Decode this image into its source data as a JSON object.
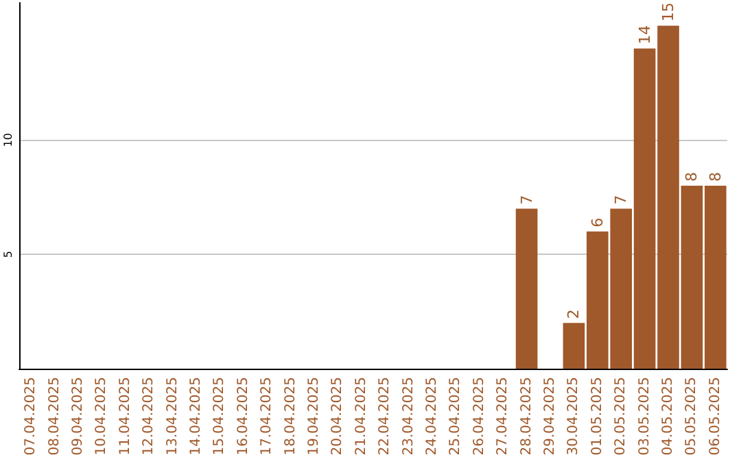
{
  "chart_data": {
    "type": "bar",
    "categories": [
      "07.04.2025",
      "08.04.2025",
      "09.04.2025",
      "10.04.2025",
      "11.04.2025",
      "12.04.2025",
      "13.04.2025",
      "14.04.2025",
      "15.04.2025",
      "16.04.2025",
      "17.04.2025",
      "18.04.2025",
      "19.04.2025",
      "20.04.2025",
      "21.04.2025",
      "22.04.2025",
      "23.04.2025",
      "24.04.2025",
      "25.04.2025",
      "26.04.2025",
      "27.04.2025",
      "28.04.2025",
      "29.04.2025",
      "30.04.2025",
      "01.05.2025",
      "02.05.2025",
      "03.05.2025",
      "04.05.2025",
      "05.05.2025",
      "06.05.2025"
    ],
    "values": [
      0,
      0,
      0,
      0,
      0,
      0,
      0,
      0,
      0,
      0,
      0,
      0,
      0,
      0,
      0,
      0,
      0,
      0,
      0,
      0,
      0,
      7,
      0,
      2,
      6,
      7,
      14,
      15,
      8,
      8
    ],
    "value_labels": [
      null,
      null,
      null,
      null,
      null,
      null,
      null,
      null,
      null,
      null,
      null,
      null,
      null,
      null,
      null,
      null,
      null,
      null,
      null,
      null,
      null,
      "7",
      null,
      "2",
      "6",
      "7",
      "14",
      "15",
      "8",
      "8"
    ],
    "color": "#a0592a",
    "ylim": [
      0,
      16
    ],
    "yticks": [
      5,
      10
    ],
    "grid": "y"
  }
}
